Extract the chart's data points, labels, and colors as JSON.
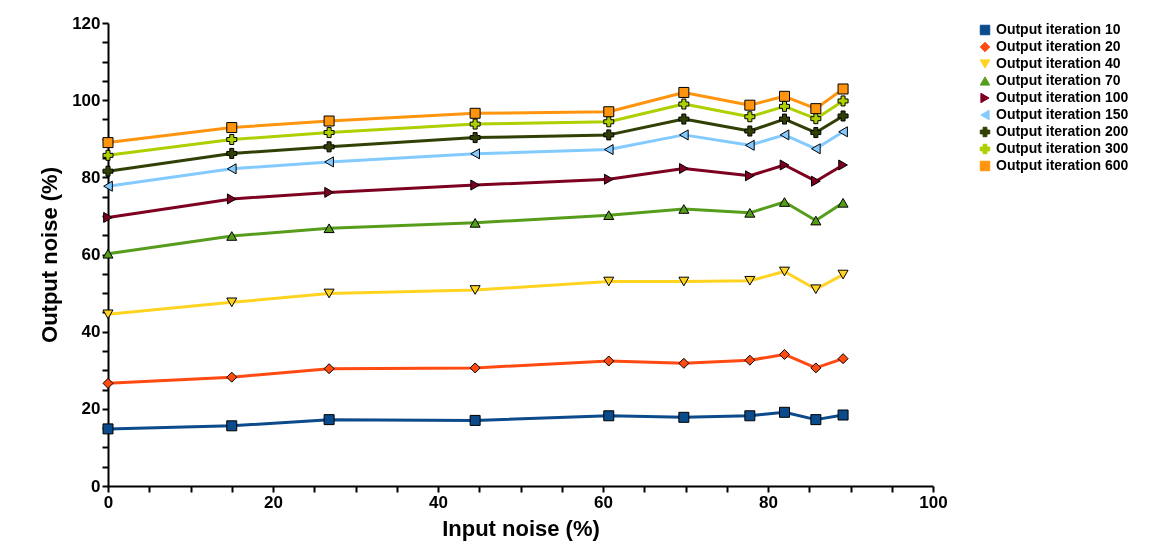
{
  "chart_data": {
    "type": "line",
    "xlabel": "Input noise (%)",
    "ylabel": "Output noise (%)",
    "x": [
      0,
      15,
      26.8,
      44.5,
      60.7,
      69.8,
      77.8,
      82,
      85.8,
      89.1
    ],
    "xlim": [
      0,
      100
    ],
    "ylim": [
      0,
      120
    ],
    "xticks": [
      0,
      {
        "value": 5,
        "label": null
      },
      {
        "value": 10,
        "label": null
      },
      {
        "value": 15,
        "label": null
      },
      20,
      {
        "value": 25,
        "label": null
      },
      {
        "value": 30,
        "label": null
      },
      {
        "value": 35,
        "label": null
      },
      40,
      {
        "value": 45,
        "label": null
      },
      {
        "value": 50,
        "label": null
      },
      {
        "value": 55,
        "label": null
      },
      60,
      {
        "value": 65,
        "label": null
      },
      {
        "value": 70,
        "label": null
      },
      {
        "value": 75,
        "label": null
      },
      80,
      {
        "value": 85,
        "label": null
      },
      {
        "value": 90,
        "label": null
      },
      {
        "value": 95,
        "label": null
      },
      100
    ],
    "yticks": [
      0,
      {
        "value": 5,
        "label": null
      },
      {
        "value": 10,
        "label": null
      },
      {
        "value": 15,
        "label": null
      },
      20,
      {
        "value": 25,
        "label": null
      },
      {
        "value": 30,
        "label": null
      },
      {
        "value": 35,
        "label": null
      },
      40,
      {
        "value": 45,
        "label": null
      },
      {
        "value": 50,
        "label": null
      },
      {
        "value": 55,
        "label": null
      },
      60,
      {
        "value": 65,
        "label": null
      },
      {
        "value": 70,
        "label": null
      },
      {
        "value": 75,
        "label": null
      },
      80,
      {
        "value": 85,
        "label": null
      },
      {
        "value": 90,
        "label": null
      },
      {
        "value": 95,
        "label": null
      },
      100,
      {
        "value": 105,
        "label": null
      },
      {
        "value": 110,
        "label": null
      },
      {
        "value": 115,
        "label": null
      },
      120
    ],
    "grid": false,
    "legend": "right",
    "series": [
      {
        "name": "Output iteration 10",
        "color": "#0b4a8b",
        "marker": "square",
        "values": [
          14.8,
          15.6,
          17.2,
          17.0,
          18.2,
          17.8,
          18.2,
          19.1,
          17.2,
          18.4
        ]
      },
      {
        "name": "Output iteration 20",
        "color": "#ff4a12",
        "marker": "diamond",
        "values": [
          26.6,
          28.2,
          30.4,
          30.6,
          32.4,
          31.8,
          32.6,
          34.1,
          30.6,
          33.0
        ]
      },
      {
        "name": "Output iteration 40",
        "color": "#ffd320",
        "marker": "triangle-down",
        "values": [
          44.5,
          47.6,
          49.9,
          50.8,
          53.0,
          53.0,
          53.2,
          55.6,
          51.0,
          54.8
        ]
      },
      {
        "name": "Output iteration 70",
        "color": "#579d1c",
        "marker": "triangle-up",
        "values": [
          60.2,
          64.8,
          66.8,
          68.2,
          70.2,
          71.8,
          70.8,
          73.6,
          68.8,
          73.4
        ]
      },
      {
        "name": "Output iteration 100",
        "color": "#7e0021",
        "marker": "triangle-right",
        "values": [
          69.6,
          74.4,
          76.1,
          78.0,
          79.5,
          82.3,
          80.4,
          83.2,
          79.0,
          83.2
        ]
      },
      {
        "name": "Output iteration 150",
        "color": "#83caff",
        "marker": "triangle-left",
        "values": [
          77.7,
          82.2,
          84.0,
          86.1,
          87.2,
          91.0,
          88.3,
          91.0,
          87.4,
          91.8
        ]
      },
      {
        "name": "Output iteration 200",
        "color": "#314004",
        "marker": "cross",
        "values": [
          81.6,
          86.2,
          87.9,
          90.3,
          91.0,
          95.1,
          92.0,
          95.1,
          91.6,
          95.9
        ]
      },
      {
        "name": "Output iteration 300",
        "color": "#aecf00",
        "marker": "cross",
        "values": [
          85.7,
          89.8,
          91.6,
          93.8,
          94.4,
          99.0,
          95.7,
          98.4,
          95.2,
          99.8
        ]
      },
      {
        "name": "Output iteration 600",
        "color": "#ff950e",
        "marker": "square",
        "values": [
          89.0,
          92.9,
          94.6,
          96.6,
          97.0,
          102.0,
          98.7,
          101.0,
          97.8,
          102.9
        ]
      }
    ]
  }
}
